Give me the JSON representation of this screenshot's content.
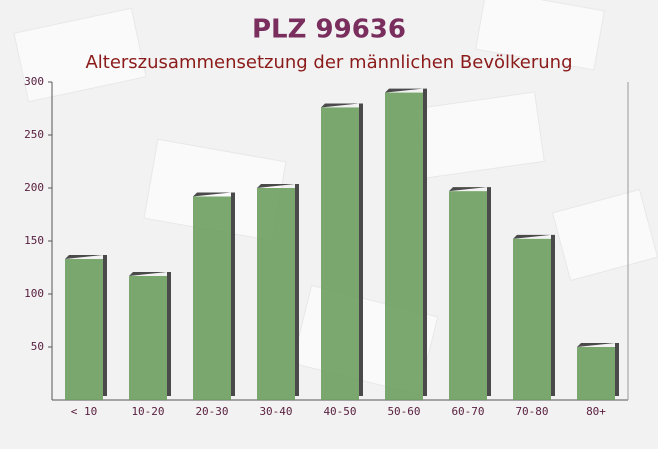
{
  "chart_data": {
    "type": "bar",
    "title": "PLZ 99636",
    "subtitle": "Alterszusammensetzung der männlichen Bevölkerung",
    "categories": [
      "< 10",
      "10-20",
      "20-30",
      "30-40",
      "40-50",
      "50-60",
      "60-70",
      "70-80",
      "80+"
    ],
    "values": [
      133,
      117,
      192,
      200,
      276,
      290,
      197,
      152,
      50
    ],
    "color": "#6b9f5e",
    "ylim": [
      0,
      300
    ],
    "yticks": [
      50,
      100,
      150,
      200,
      250,
      300
    ]
  }
}
